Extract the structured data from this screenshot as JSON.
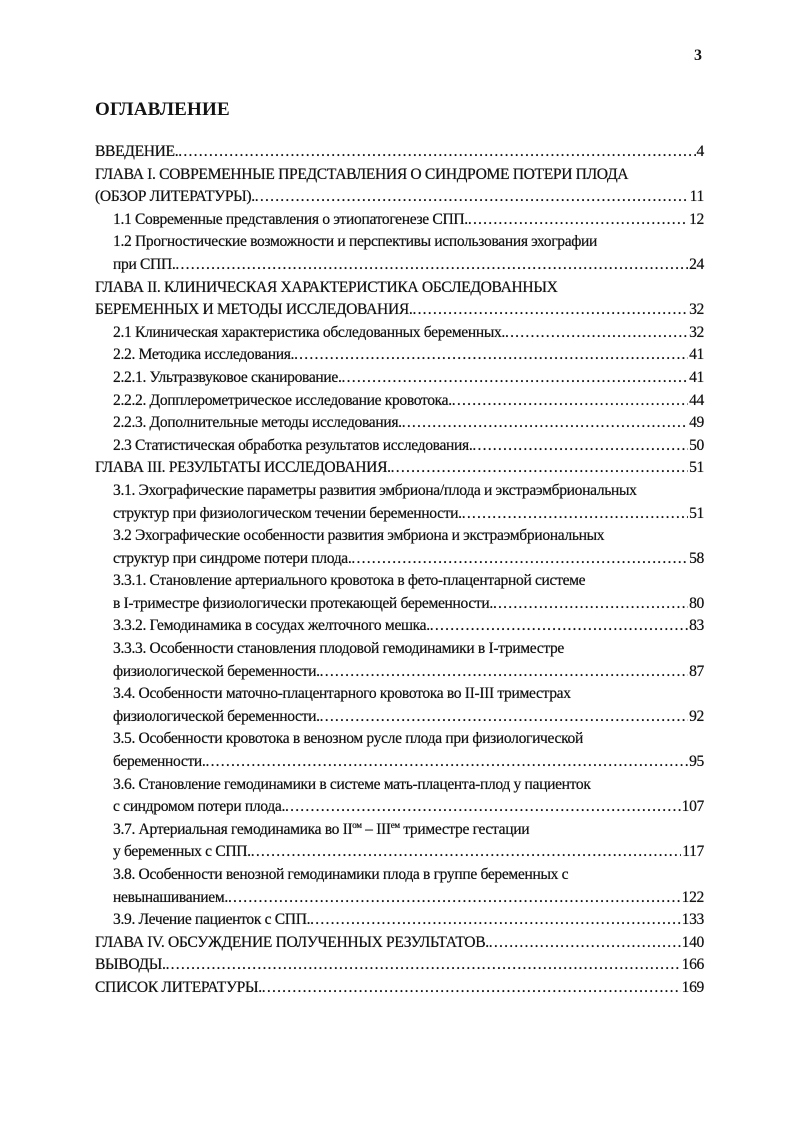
{
  "page_number": "3",
  "title": "ОГЛАВЛЕНИЕ",
  "entries": [
    {
      "level": 0,
      "lines": [
        "ВВЕДЕНИЕ."
      ],
      "page": "4"
    },
    {
      "level": 0,
      "lines": [
        "ГЛАВА I.   СОВРЕМЕННЫЕ ПРЕДСТАВЛЕНИЯ О СИНДРОМЕ ПОТЕРИ ПЛОДА",
        "(ОБЗОР ЛИТЕРАТУРЫ)."
      ],
      "page": "11"
    },
    {
      "level": 1,
      "lines": [
        "1.1 Современные представления о этиопатогенезе СПП."
      ],
      "page": "12"
    },
    {
      "level": 1,
      "lines": [
        "1.2 Прогностические возможности и перспективы использования эхографии",
        "при СПП."
      ],
      "page": "24"
    },
    {
      "level": 0,
      "lines": [
        "ГЛАВА II. КЛИНИЧЕСКАЯ ХАРАКТЕРИСТИКА ОБСЛЕДОВАННЫХ",
        "БЕРЕМЕННЫХ И МЕТОДЫ  ИССЛЕДОВАНИЯ."
      ],
      "page": "32"
    },
    {
      "level": 1,
      "lines": [
        "2.1 Клиническая характеристика обследованных беременных."
      ],
      "page": "32"
    },
    {
      "level": 1,
      "lines": [
        "2.2. Методика исследования. "
      ],
      "page": "41"
    },
    {
      "level": 1,
      "lines": [
        "2.2.1. Ультразвуковое сканирование."
      ],
      "page": "41"
    },
    {
      "level": 1,
      "lines": [
        "2.2.2. Допплерометрическое исследование кровотока."
      ],
      "page": "44"
    },
    {
      "level": 1,
      "lines": [
        "2.2.3. Дополнительные методы исследования. "
      ],
      "page": "49"
    },
    {
      "level": 1,
      "lines": [
        "2.3 Статистическая обработка результатов исследования."
      ],
      "page": "50"
    },
    {
      "level": 0,
      "lines": [
        "ГЛАВА  III. РЕЗУЛЬТАТЫ ИССЛЕДОВАНИЯ. "
      ],
      "page": "51"
    },
    {
      "level": 1,
      "lines": [
        "3.1. Эхографические параметры развития эмбриона/плода  и экстраэмбриональных",
        "структур при физиологическом течении беременности. "
      ],
      "page": "51"
    },
    {
      "level": 1,
      "lines": [
        "3.2 Эхографические особенности развития эмбриона и экстраэмбриональных",
        "структур при синдроме потери плода."
      ],
      "page": "58"
    },
    {
      "level": 1,
      "lines": [
        "3.3.1. Становление артериального кровотока в фето-плацентарной системе",
        "в I-триместре физиологически протекающей беременности. "
      ],
      "page": "80"
    },
    {
      "level": 1,
      "lines": [
        "3.3.2. Гемодинамика в сосудах желточного мешка."
      ],
      "page": "83"
    },
    {
      "level": 1,
      "lines": [
        "3.3.3. Особенности становления плодовой гемодинамики в I-триместре",
        "физиологической беременности."
      ],
      "page": "87"
    },
    {
      "level": 1,
      "lines": [
        "3.4. Особенности маточно-плацентарного кровотока во II-III триместрах",
        "физиологической беременности."
      ],
      "page": "92"
    },
    {
      "level": 1,
      "lines": [
        "3.5. Особенности кровотока в венозном русле плода при физиологической",
        "беременности."
      ],
      "page": "95"
    },
    {
      "level": 1,
      "lines": [
        "3.6. Становление гемодинамики в системе мать-плацента-плод у пациенток",
        "с синдромом потери плода."
      ],
      "page": "107"
    },
    {
      "level": 1,
      "lines": [
        [
          {
            "t": "3.7. Артериальная гемодинамика во II"
          },
          {
            "t": "ом",
            "sup": true
          },
          {
            "t": " – III"
          },
          {
            "t": "ем",
            "sup": true
          },
          {
            "t": " триместре гестации"
          }
        ],
        "у беременных с СПП. "
      ],
      "page": "117"
    },
    {
      "level": 1,
      "lines": [
        "3.8. Особенности венозной гемодинамики плода в группе беременных с",
        "невынашиванием."
      ],
      "page": "122"
    },
    {
      "level": 1,
      "lines": [
        "3.9.  Лечение пациенток с СПП. "
      ],
      "page": "133"
    },
    {
      "level": 0,
      "lines": [
        "ГЛАВА IV. ОБСУЖДЕНИЕ ПОЛУЧЕННЫХ РЕЗУЛЬТАТОВ."
      ],
      "page": "140"
    },
    {
      "level": 0,
      "lines": [
        "ВЫВОДЫ."
      ],
      "page": "166"
    },
    {
      "level": 0,
      "lines": [
        "СПИСОК ЛИТЕРАТУРЫ. "
      ],
      "page": "169"
    }
  ]
}
